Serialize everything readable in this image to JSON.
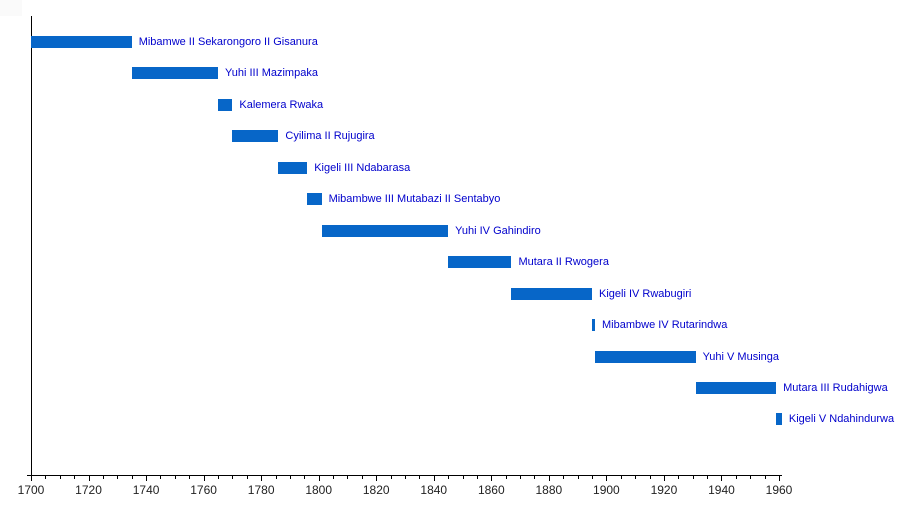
{
  "chart_data": {
    "type": "bar",
    "subtype": "gantt-timeline",
    "orientation": "horizontal",
    "title": "",
    "xlabel": "",
    "ylabel": "",
    "grid": false,
    "legend": false,
    "x_axis": {
      "min": 1700,
      "max": 1960,
      "major_tick_step": 20,
      "minor_tick_step": 5,
      "tick_labels": [
        "1700",
        "1720",
        "1740",
        "1760",
        "1780",
        "1800",
        "1820",
        "1840",
        "1860",
        "1880",
        "1900",
        "1920",
        "1940",
        "1960"
      ]
    },
    "bars": [
      {
        "label": "Mibamwe II Sekarongoro II Gisanura",
        "start": 1700,
        "end": 1735
      },
      {
        "label": "Yuhi III Mazimpaka",
        "start": 1735,
        "end": 1765
      },
      {
        "label": "Kalemera Rwaka",
        "start": 1765,
        "end": 1770
      },
      {
        "label": "Cyilima II Rujugira",
        "start": 1770,
        "end": 1786
      },
      {
        "label": "Kigeli III Ndabarasa",
        "start": 1786,
        "end": 1796
      },
      {
        "label": "Mibambwe III Mutabazi II Sentabyo",
        "start": 1796,
        "end": 1801
      },
      {
        "label": "Yuhi IV Gahindiro",
        "start": 1801,
        "end": 1845
      },
      {
        "label": "Mutara II Rwogera",
        "start": 1845,
        "end": 1867
      },
      {
        "label": "Kigeli IV Rwabugiri",
        "start": 1867,
        "end": 1895
      },
      {
        "label": "Mibambwe IV Rutarindwa",
        "start": 1895,
        "end": 1896
      },
      {
        "label": "Yuhi V Musinga",
        "start": 1896,
        "end": 1931
      },
      {
        "label": "Mutara III Rudahigwa",
        "start": 1931,
        "end": 1959
      },
      {
        "label": "Kigeli V Ndahindurwa",
        "start": 1959,
        "end": 1961
      }
    ],
    "colors": {
      "bar": "#0766c8",
      "bar_label": "#0000cc",
      "axis": "#000000",
      "tick_label": "#222222",
      "background": "#ffffff"
    }
  }
}
